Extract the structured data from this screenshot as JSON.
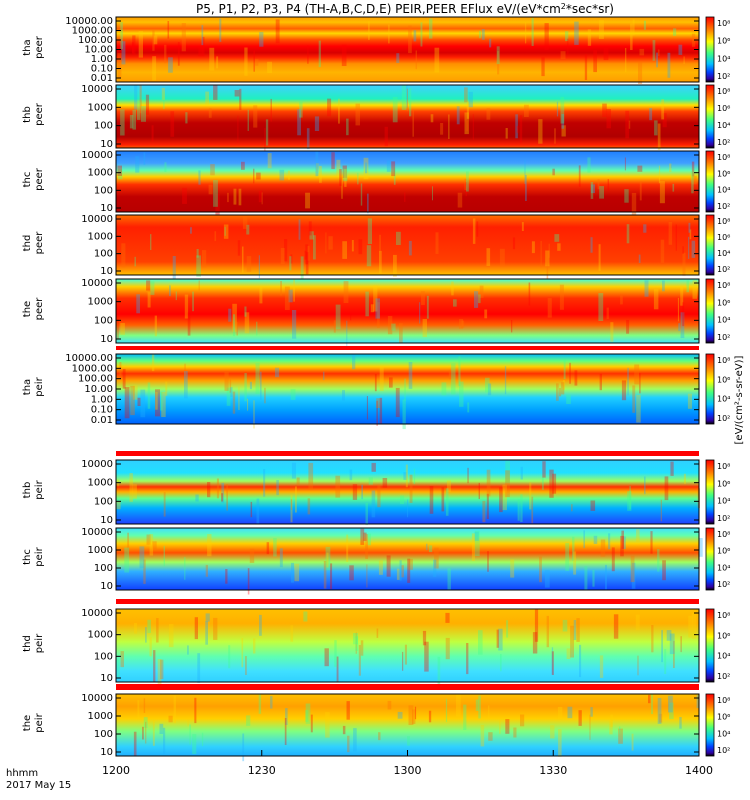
{
  "chart_data": {
    "type": "heatmap",
    "title": "P5, P1, P2, P3, P4 (TH-A,B,C,D,E) PEIR,PEER EFlux eV/(eV*cm",
    "title_sup": "2",
    "title_end": "*sec*sr)",
    "x_axis": {
      "tick_labels": [
        "1200",
        "1230",
        "1300",
        "1330",
        "1400"
      ],
      "corner_label_1": "hhmm",
      "corner_label_2": "2017 May 15"
    },
    "colorbar": {
      "tick_labels": [
        "10⁸",
        "10⁶",
        "10⁴",
        "10²"
      ],
      "label": "[eV/(cm²-s-sr-eV)]"
    },
    "panels": [
      {
        "id": "tha-peer",
        "l1": "tha",
        "l2": "peer",
        "scale": "log",
        "ticks": [
          "10000.00",
          "1000.00",
          "100.00",
          "10.00",
          "1.00",
          "0.10",
          "0.01"
        ],
        "variant": "tha_peer"
      },
      {
        "id": "thb-peer",
        "l1": "thb",
        "l2": "peer",
        "scale": "log",
        "ticks": [
          "10000",
          "1000",
          "100",
          "10"
        ],
        "variant": "thb_peer"
      },
      {
        "id": "thc-peer",
        "l1": "thc",
        "l2": "peer",
        "scale": "log",
        "ticks": [
          "10000",
          "1000",
          "100",
          "10"
        ],
        "variant": "thc_peer"
      },
      {
        "id": "thd-peer",
        "l1": "thd",
        "l2": "peer",
        "scale": "log",
        "ticks": [
          "10000",
          "1000",
          "100",
          "10"
        ],
        "variant": "thd_peer"
      },
      {
        "id": "the-peer",
        "l1": "the",
        "l2": "peer",
        "scale": "log",
        "ticks": [
          "10000",
          "1000",
          "100",
          "10"
        ],
        "variant": "the_peer"
      },
      {
        "id": "tha-peir",
        "l1": "tha",
        "l2": "peir",
        "scale": "log",
        "ticks": [
          "10000.00",
          "1000.00",
          "100.00",
          "10.00",
          "1.00",
          "0.10",
          "0.01"
        ],
        "variant": "tha_peir"
      },
      {
        "id": "thb-peir",
        "l1": "thb",
        "l2": "peir",
        "scale": "log",
        "ticks": [
          "10000",
          "1000",
          "100",
          "10"
        ],
        "variant": "thb_peir"
      },
      {
        "id": "thc-peir",
        "l1": "thc",
        "l2": "peir",
        "scale": "log",
        "ticks": [
          "10000",
          "1000",
          "100",
          "10"
        ],
        "variant": "thc_peir"
      },
      {
        "id": "thd-peir",
        "l1": "thd",
        "l2": "peir",
        "scale": "log",
        "ticks": [
          "10000",
          "1000",
          "100",
          "10"
        ],
        "variant": "thd_peir"
      },
      {
        "id": "the-peir",
        "l1": "the",
        "l2": "peir",
        "scale": "log",
        "ticks": [
          "10000",
          "1000",
          "100",
          "10"
        ],
        "variant": "the_peir"
      }
    ]
  }
}
